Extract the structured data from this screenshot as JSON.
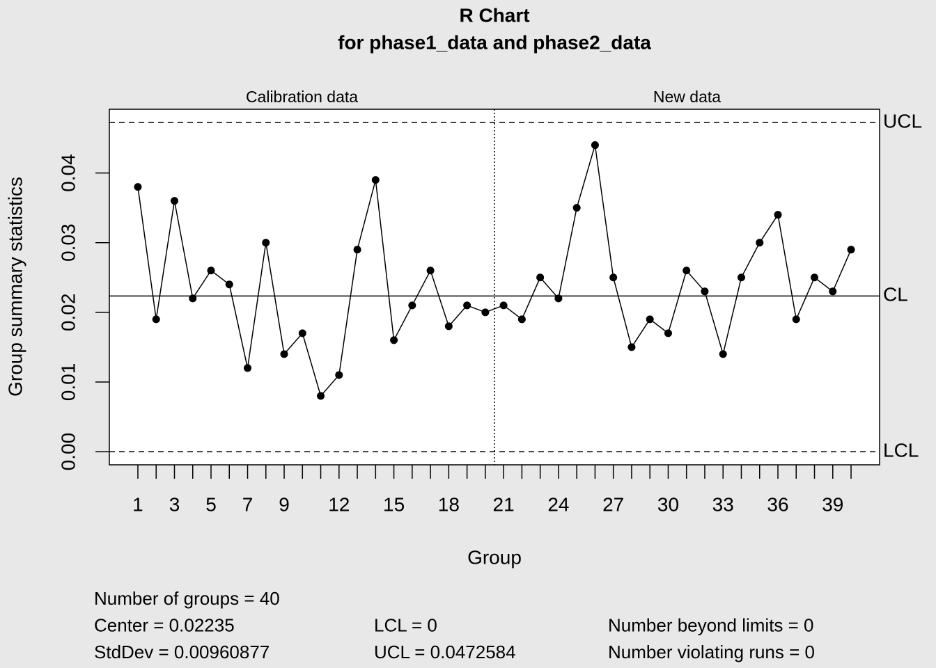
{
  "chart_data": {
    "type": "line",
    "title": "R Chart",
    "subtitle": "for phase1_data and phase2_data",
    "x_label": "Group",
    "y_label": "Group summary statistics",
    "x": [
      1,
      2,
      3,
      4,
      5,
      6,
      7,
      8,
      9,
      10,
      11,
      12,
      13,
      14,
      15,
      16,
      17,
      18,
      19,
      20,
      21,
      22,
      23,
      24,
      25,
      26,
      27,
      28,
      29,
      30,
      31,
      32,
      33,
      34,
      35,
      36,
      37,
      38,
      39,
      40
    ],
    "values": [
      0.038,
      0.019,
      0.036,
      0.022,
      0.026,
      0.024,
      0.012,
      0.03,
      0.014,
      0.017,
      0.008,
      0.011,
      0.029,
      0.039,
      0.016,
      0.021,
      0.026,
      0.018,
      0.021,
      0.02,
      0.021,
      0.019,
      0.025,
      0.022,
      0.035,
      0.044,
      0.025,
      0.015,
      0.019,
      0.017,
      0.026,
      0.023,
      0.014,
      0.025,
      0.03,
      0.034,
      0.019,
      0.025,
      0.023,
      0.029
    ],
    "color": "#000000",
    "xlim": [
      -0.56,
      41.56
    ],
    "ylim": [
      -0.00189,
      0.04915
    ],
    "xticks": [
      1,
      3,
      5,
      7,
      9,
      12,
      15,
      18,
      21,
      24,
      27,
      30,
      33,
      36,
      39
    ],
    "yticks": [
      {
        "value": 0,
        "label": "0.00"
      },
      0.01,
      0.02,
      0.03,
      0.04
    ],
    "phases": [
      {
        "label": "Calibration data",
        "start": 1,
        "end": 20
      },
      {
        "label": "New data",
        "start": 21,
        "end": 40
      }
    ],
    "limit_lines": [
      {
        "label": "UCL",
        "value": 0.0472584,
        "dashed": true
      },
      {
        "label": "CL",
        "value": 0.02235,
        "dashed": false
      },
      {
        "label": "LCL",
        "value": 0,
        "dashed": true
      }
    ],
    "stats": [
      [
        "Number of groups = 40",
        "Center = 0.02235",
        "StdDev = 0.00960877"
      ],
      [
        "LCL = 0",
        "UCL = 0.0472584"
      ],
      [
        "Number beyond limits = 0",
        "Number violating runs = 0"
      ]
    ]
  }
}
